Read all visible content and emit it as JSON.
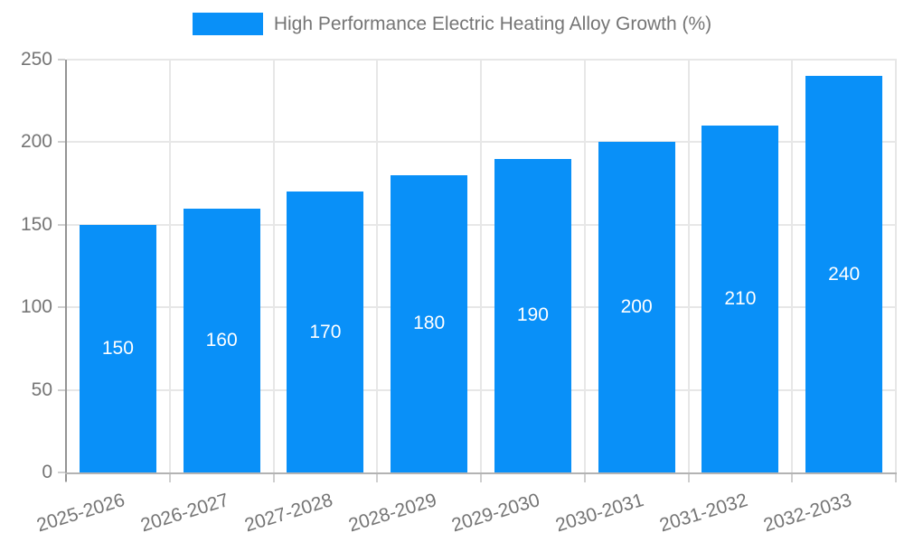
{
  "chart_data": {
    "type": "bar",
    "title": "High Performance Electric Heating Alloy Growth (%)",
    "legend": {
      "label": "High Performance Electric Heating Alloy Growth (%)",
      "position": "top-center"
    },
    "categories": [
      "2025-2026",
      "2026-2027",
      "2027-2028",
      "2028-2029",
      "2029-2030",
      "2030-2031",
      "2031-2032",
      "2032-2033"
    ],
    "values": [
      150,
      160,
      170,
      180,
      190,
      200,
      210,
      240
    ],
    "xlabel": "",
    "ylabel": "",
    "ylim": [
      0,
      250
    ],
    "yticks": [
      0,
      50,
      100,
      150,
      200,
      250
    ],
    "grid": true,
    "bar_label_position": "inside-center",
    "colors": {
      "bar": "#0990f8",
      "bar_label": "#ffffff",
      "axis_text": "#757575",
      "legend_text": "#757575",
      "gridline": "#e7e7e7",
      "y_axis_line": "#949494",
      "x_axis_line": "#b3b3b3",
      "tick": "#cfcfcf",
      "background": "#ffffff"
    }
  }
}
